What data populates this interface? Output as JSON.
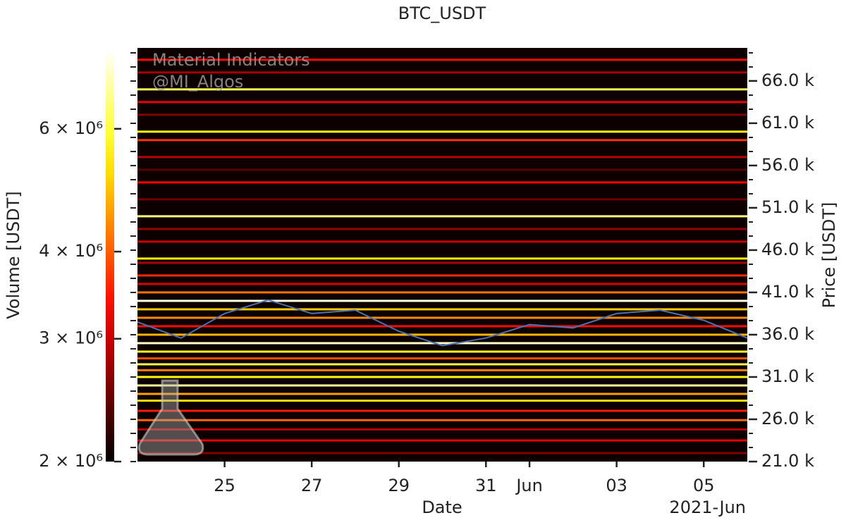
{
  "chart_data": {
    "type": "heatmap",
    "title": "BTC_USDT",
    "x_label": "Date",
    "x_offset_label": "2021-Jun",
    "y_label": "Volume [USDT]",
    "y2_label": "Price [USDT]",
    "watermark": [
      "Material Indicators",
      "@MI_Algos"
    ],
    "xlim": [
      "2021-05-23",
      "2021-06-06"
    ],
    "xticks": [
      {
        "value": "2021-05-25",
        "label": "25"
      },
      {
        "value": "2021-05-27",
        "label": "27"
      },
      {
        "value": "2021-05-29",
        "label": "29"
      },
      {
        "value": "2021-05-31",
        "label": "31"
      },
      {
        "value": "2021-06-01",
        "label": "Jun"
      },
      {
        "value": "2021-06-03",
        "label": "03"
      },
      {
        "value": "2021-06-05",
        "label": "05"
      }
    ],
    "colorbar": {
      "colormap": "hot",
      "log_scale": true,
      "lim": [
        2000000,
        7800000
      ],
      "ticks": [
        {
          "value": 2000000,
          "label": "2 × 10⁶"
        },
        {
          "value": 3000000,
          "label": "3 × 10⁶"
        },
        {
          "value": 4000000,
          "label": "4 × 10⁶"
        },
        {
          "value": 6000000,
          "label": "6 × 10⁶"
        }
      ]
    },
    "y2lim": [
      21000,
      69900
    ],
    "y2ticks": [
      {
        "value": 21000,
        "label": "21.0 k"
      },
      {
        "value": 26000,
        "label": "26.0 k"
      },
      {
        "value": 31000,
        "label": "31.0 k"
      },
      {
        "value": 36000,
        "label": "36.0 k"
      },
      {
        "value": 41000,
        "label": "41.0 k"
      },
      {
        "value": 46000,
        "label": "46.0 k"
      },
      {
        "value": 51000,
        "label": "51.0 k"
      },
      {
        "value": 56000,
        "label": "56.0 k"
      },
      {
        "value": 61000,
        "label": "61.0 k"
      },
      {
        "value": 66000,
        "label": "66.0 k"
      }
    ],
    "levels": {
      "prices": [
        22000,
        23500,
        24800,
        25900,
        27000,
        28200,
        29000,
        30000,
        31000,
        31800,
        32500,
        33200,
        34000,
        35000,
        36000,
        37000,
        38000,
        39000,
        40000,
        41000,
        42000,
        43000,
        44500,
        45000,
        47000,
        48500,
        50000,
        52000,
        54000,
        55500,
        57000,
        59000,
        60000,
        62000,
        63500,
        65000,
        67000,
        68500
      ],
      "volumes": [
        2600000,
        3200000,
        2900000,
        4100000,
        3500000,
        5200000,
        4600000,
        6800000,
        5500000,
        4300000,
        6100000,
        3900000,
        5800000,
        7200000,
        4800000,
        3400000,
        4400000,
        5000000,
        7500000,
        4200000,
        3100000,
        3600000,
        2800000,
        5400000,
        3000000,
        2700000,
        6500000,
        2500000,
        3300000,
        2400000,
        2900000,
        3700000,
        5600000,
        2600000,
        3200000,
        6200000,
        2800000,
        3400000
      ]
    },
    "price": {
      "color": "#4c72b0",
      "x": [
        "2021-05-23",
        "2021-05-24",
        "2021-05-25",
        "2021-05-26",
        "2021-05-27",
        "2021-05-28",
        "2021-05-29",
        "2021-05-30",
        "2021-05-31",
        "2021-06-01",
        "2021-06-02",
        "2021-06-03",
        "2021-06-04",
        "2021-06-05",
        "2021-06-06"
      ],
      "values": [
        37500,
        35600,
        38500,
        40100,
        38500,
        38900,
        36400,
        34700,
        35600,
        37200,
        36800,
        38500,
        38900,
        37700,
        35600
      ]
    }
  }
}
